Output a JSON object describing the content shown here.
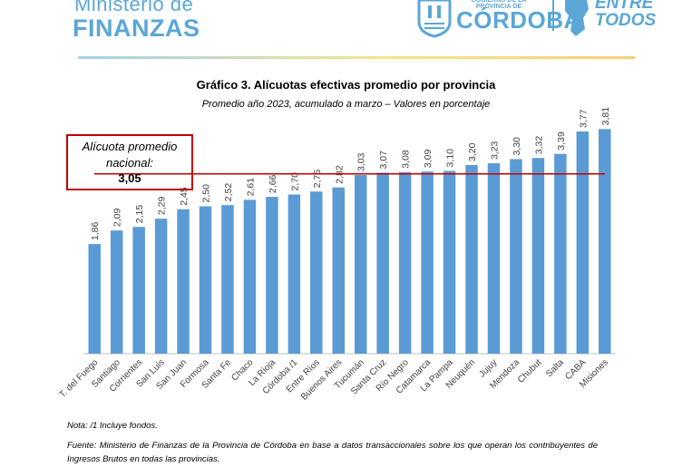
{
  "header": {
    "ministry_line1": "Ministerio de",
    "ministry_line2": "FINANZAS",
    "gov_small": "GOBIERNO DE LA PROVINCIA DE",
    "gov_big": "CÓRDOBA",
    "slogan": "ENTRE TODOS",
    "brand_color": "#5aa7d8"
  },
  "chart_data": {
    "type": "bar",
    "title": "Gráfico 3. Alícuotas efectivas promedio por provincia",
    "subtitle": "Promedio año 2023, acumulado a marzo – Valores en porcentaje",
    "categories": [
      "T. del Fuego",
      "Santiago",
      "Corrientes",
      "San Luis",
      "San Juan",
      "Formosa",
      "Santa Fe",
      "Chaco",
      "La Rioja",
      "Córdoba /1",
      "Entre Ríos",
      "Buenos Aires",
      "Tucumán",
      "Santa Cruz",
      "Río Negro",
      "Catamarca",
      "La Pampa",
      "Neuquén",
      "Jujuy",
      "Mendoza",
      "Chubut",
      "Salta",
      "CABA",
      "Misiones"
    ],
    "values": [
      1.86,
      2.09,
      2.15,
      2.29,
      2.45,
      2.5,
      2.52,
      2.61,
      2.66,
      2.7,
      2.75,
      2.82,
      3.03,
      3.07,
      3.08,
      3.09,
      3.1,
      3.2,
      3.23,
      3.3,
      3.32,
      3.39,
      3.77,
      3.81
    ],
    "value_labels": [
      "1,86",
      "2,09",
      "2,15",
      "2,29",
      "2,45",
      "2,50",
      "2,52",
      "2,61",
      "2,66",
      "2,70",
      "2,75",
      "2,82",
      "3,03",
      "3,07",
      "3,08",
      "3,09",
      "3,10",
      "3,20",
      "3,23",
      "3,30",
      "3,32",
      "3,39",
      "3,77",
      "3,81"
    ],
    "reference_line": {
      "value": 3.05,
      "label": "Alícuota promedio nacional:",
      "value_label": "3,05"
    },
    "ylim": [
      0,
      4
    ],
    "bar_color": "#5b9bd5",
    "line_color": "#c00000",
    "grid": false,
    "legend": "none"
  },
  "footer": {
    "note": "Nota: /1 Incluye fondos.",
    "source": "Fuente: Ministerio de Finanzas de la Provincia de Córdoba en base a datos transaccionales sobre los que operan los contribuyentes de Ingresos Brutos en todas las provincias."
  }
}
